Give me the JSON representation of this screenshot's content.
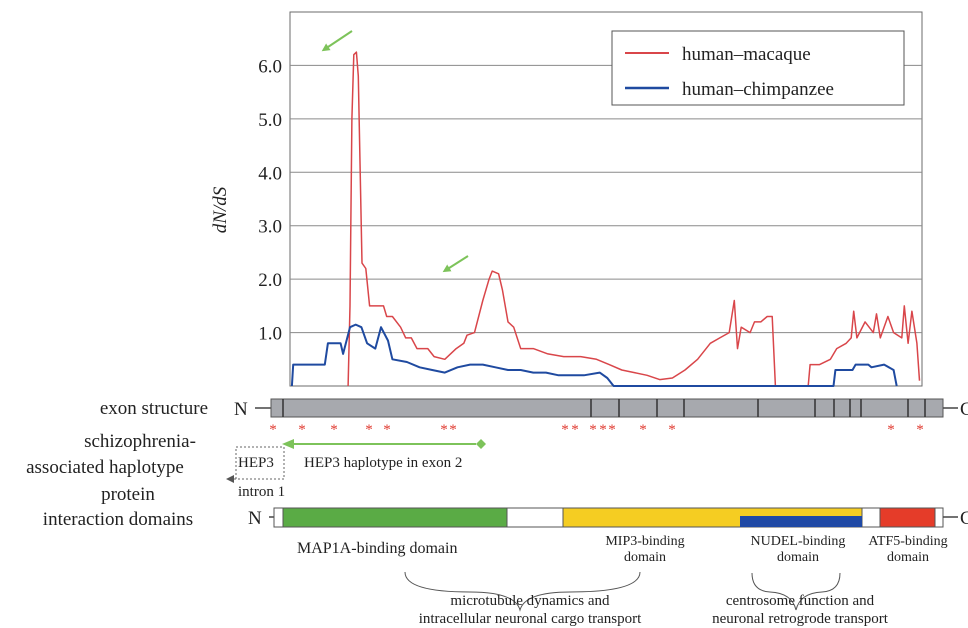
{
  "chart_data": {
    "type": "line",
    "ylabel": "dN/dS",
    "ylim": [
      0,
      7.0
    ],
    "yticks": [
      {
        "value": 1.0,
        "label": "1.0"
      },
      {
        "value": 2.0,
        "label": "2.0"
      },
      {
        "value": 3.0,
        "label": "3.0"
      },
      {
        "value": 4.0,
        "label": "4.0"
      },
      {
        "value": 5.0,
        "label": "5.0"
      },
      {
        "value": 6.0,
        "label": "6.0"
      }
    ],
    "xlim": [
      0,
      100
    ],
    "grid": true,
    "legend_position": "top-right",
    "series": [
      {
        "name": "human–macaque",
        "color": "#d9464a",
        "points": [
          [
            9.2,
            0
          ],
          [
            9.5,
            1.5
          ],
          [
            9.8,
            5.0
          ],
          [
            10.1,
            6.2
          ],
          [
            10.5,
            6.25
          ],
          [
            10.8,
            5.8
          ],
          [
            11.1,
            4.0
          ],
          [
            11.4,
            2.3
          ],
          [
            12.0,
            2.2
          ],
          [
            12.6,
            1.5
          ],
          [
            14.8,
            1.5
          ],
          [
            15.3,
            1.3
          ],
          [
            16.2,
            1.3
          ],
          [
            17.5,
            1.1
          ],
          [
            18.3,
            0.9
          ],
          [
            19.2,
            0.9
          ],
          [
            20.1,
            0.7
          ],
          [
            21.8,
            0.7
          ],
          [
            22.8,
            0.55
          ],
          [
            24.5,
            0.5
          ],
          [
            26.3,
            0.7
          ],
          [
            27.5,
            0.8
          ],
          [
            28.0,
            0.95
          ],
          [
            29.2,
            1.0
          ],
          [
            30.5,
            1.6
          ],
          [
            31.5,
            2.0
          ],
          [
            32.0,
            2.15
          ],
          [
            33.0,
            2.1
          ],
          [
            33.6,
            1.8
          ],
          [
            34.5,
            1.2
          ],
          [
            35.4,
            1.1
          ],
          [
            36.5,
            0.7
          ],
          [
            38.5,
            0.7
          ],
          [
            40.8,
            0.6
          ],
          [
            43.3,
            0.55
          ],
          [
            46.0,
            0.55
          ],
          [
            48.5,
            0.5
          ],
          [
            50.5,
            0.4
          ],
          [
            52.5,
            0.3
          ],
          [
            54.5,
            0.25
          ],
          [
            56.5,
            0.2
          ],
          [
            58.5,
            0.12
          ],
          [
            60.5,
            0.15
          ],
          [
            62.5,
            0.3
          ],
          [
            64.5,
            0.5
          ],
          [
            66.5,
            0.8
          ],
          [
            68.0,
            0.9
          ],
          [
            69.5,
            1.0
          ],
          [
            70.3,
            1.6
          ],
          [
            70.8,
            0.7
          ],
          [
            71.4,
            1.1
          ],
          [
            72.8,
            1.0
          ],
          [
            73.5,
            1.2
          ],
          [
            74.5,
            1.2
          ],
          [
            75.5,
            1.3
          ],
          [
            76.3,
            1.3
          ],
          [
            76.8,
            0
          ],
          [
            82.0,
            0
          ],
          [
            82.3,
            0.4
          ],
          [
            83.8,
            0.4
          ],
          [
            85.5,
            0.5
          ],
          [
            86.5,
            0.7
          ],
          [
            88.0,
            0.8
          ],
          [
            88.8,
            0.9
          ],
          [
            89.2,
            1.4
          ],
          [
            89.7,
            0.9
          ],
          [
            91.0,
            1.2
          ],
          [
            92.3,
            1.0
          ],
          [
            92.8,
            1.35
          ],
          [
            93.4,
            0.9
          ],
          [
            94.6,
            1.3
          ],
          [
            95.5,
            1.0
          ],
          [
            96.8,
            0.9
          ],
          [
            97.2,
            1.5
          ],
          [
            97.8,
            0.8
          ],
          [
            98.4,
            1.4
          ],
          [
            99.2,
            0.8
          ],
          [
            99.6,
            0.1
          ]
        ]
      },
      {
        "name": "human–chimpanzee",
        "color": "#1f4aa0",
        "points": [
          [
            0.3,
            0
          ],
          [
            0.5,
            0.4
          ],
          [
            5.5,
            0.4
          ],
          [
            6.0,
            0.8
          ],
          [
            8.0,
            0.8
          ],
          [
            8.4,
            0.6
          ],
          [
            9.5,
            1.1
          ],
          [
            10.4,
            1.15
          ],
          [
            11.3,
            1.1
          ],
          [
            12.2,
            0.8
          ],
          [
            13.5,
            0.7
          ],
          [
            14.4,
            1.1
          ],
          [
            15.5,
            0.85
          ],
          [
            16.2,
            0.5
          ],
          [
            18.5,
            0.45
          ],
          [
            20.5,
            0.35
          ],
          [
            22.5,
            0.3
          ],
          [
            24.5,
            0.25
          ],
          [
            26.5,
            0.35
          ],
          [
            28.5,
            0.4
          ],
          [
            30.5,
            0.4
          ],
          [
            32.5,
            0.35
          ],
          [
            34.5,
            0.3
          ],
          [
            36.5,
            0.3
          ],
          [
            38.5,
            0.25
          ],
          [
            40.5,
            0.25
          ],
          [
            42.5,
            0.2
          ],
          [
            44.5,
            0.2
          ],
          [
            46.5,
            0.2
          ],
          [
            49.0,
            0.25
          ],
          [
            50.2,
            0.15
          ],
          [
            51.2,
            0
          ],
          [
            86.0,
            0
          ],
          [
            86.3,
            0.3
          ],
          [
            89.0,
            0.3
          ],
          [
            89.5,
            0.4
          ],
          [
            91.5,
            0.4
          ],
          [
            92.0,
            0.35
          ],
          [
            94.0,
            0.4
          ],
          [
            95.5,
            0.3
          ],
          [
            96.0,
            0
          ]
        ]
      }
    ]
  },
  "arrows_color": "#7dc35a",
  "row_labels": {
    "exon": "exon structure",
    "schizo_1": "schizophrenia-",
    "schizo_2": "associated haplotype",
    "protein_1": "protein",
    "protein_2": "interaction domains"
  },
  "terminals": {
    "n": "N",
    "c": "C"
  },
  "exon_boundaries": [
    0.3,
    2.4,
    4.6,
    6.4,
    8.5,
    10.8,
    12.9,
    18.0,
    20.4,
    22.3
  ],
  "stars": [
    "*",
    "*",
    "*",
    "*",
    "*",
    "*",
    "*",
    "*",
    "*",
    "*",
    "*",
    "*",
    "*",
    "*",
    "*",
    "*",
    "*",
    "*"
  ],
  "haplotype": {
    "hep3_label": "HEP3",
    "hep3_sub": "intron 1",
    "exon2_label": "HEP3 haplotype in exon 2"
  },
  "domains": [
    {
      "id": "map1a",
      "label": "MAP1A-binding domain",
      "color": "#5aab45"
    },
    {
      "id": "mip3",
      "label_1": "MIP3-binding",
      "label_2": "domain",
      "color": "#f5cd22"
    },
    {
      "id": "nudel",
      "label_1": "NUDEL-binding",
      "label_2": "domain",
      "color": "#1f49a5"
    },
    {
      "id": "atf5",
      "label_1": "ATF5-binding",
      "label_2": "domain",
      "color": "#e53c29"
    }
  ],
  "functions": {
    "microtubule_1": "microtubule dynamics and",
    "microtubule_2": "intracellular neuronal cargo transport",
    "centrosome_1": "centrosome function and",
    "centrosome_2": "neuronal retrogrode transport"
  }
}
